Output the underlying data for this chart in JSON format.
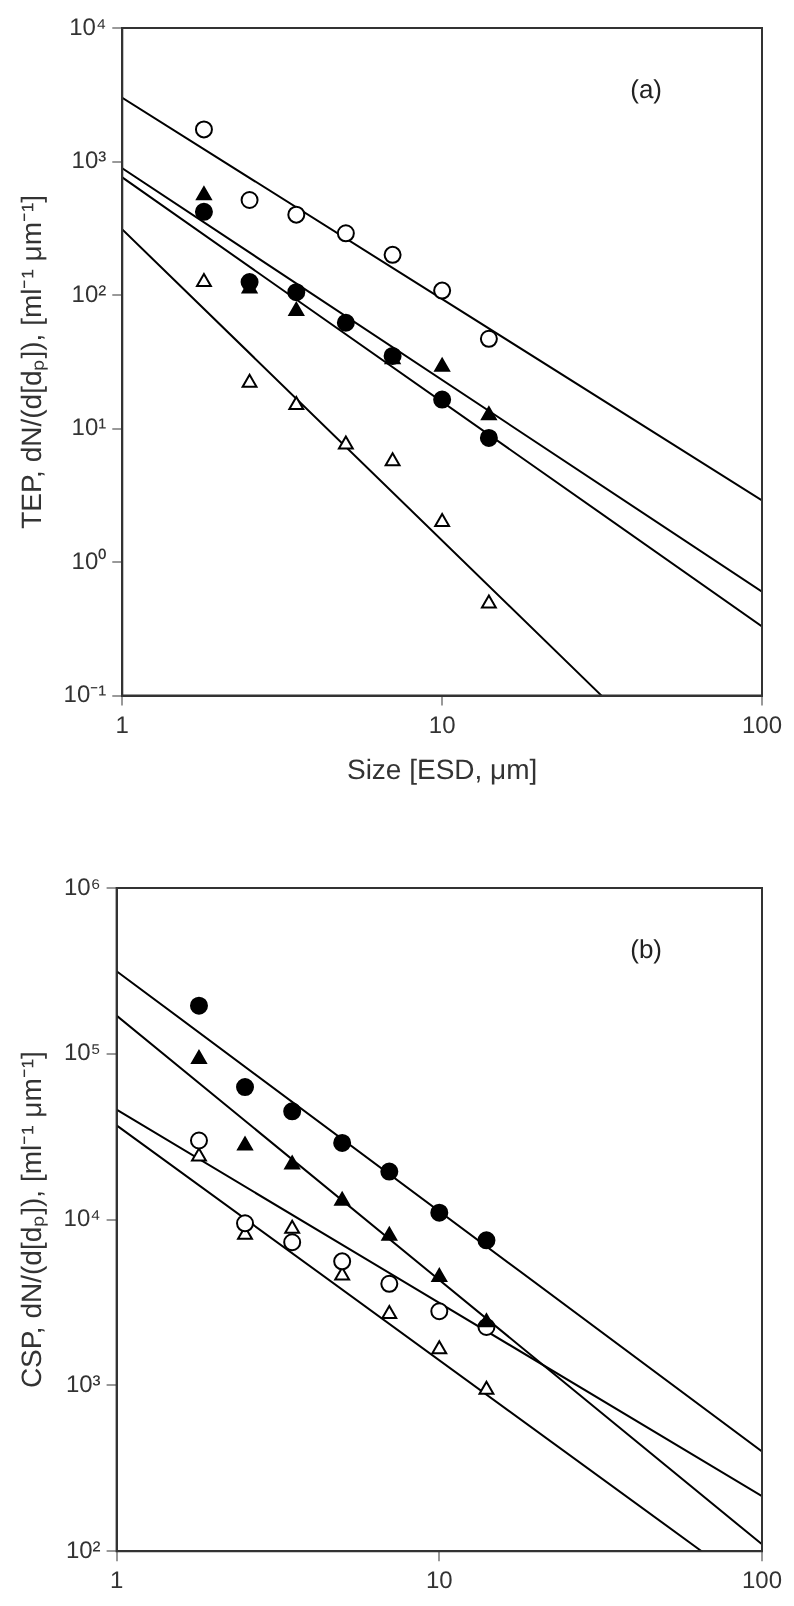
{
  "chart_data": [
    {
      "type": "scatter",
      "xlabel": "Size [ESD, μm]",
      "ylabel": "TEP, dN/(d[dₚ]), [ml⁻¹ μm⁻¹]",
      "annotations": [
        "(a)"
      ],
      "log": "xy",
      "grid": false,
      "legend": false,
      "x": [
        1.8,
        2.5,
        3.5,
        5,
        7,
        10,
        14
      ],
      "xlim": [
        1,
        100
      ],
      "xticks": [
        1,
        10,
        100
      ],
      "ylim": [
        0.1,
        10000
      ],
      "yticks": [
        {
          "value": 0.1,
          "label": "10⁻¹"
        },
        {
          "value": 1,
          "label": "10⁰"
        },
        {
          "value": 10,
          "label": "10¹"
        },
        {
          "value": 100,
          "label": "10²"
        },
        {
          "value": 1000,
          "label": "10³"
        },
        {
          "value": 10000,
          "label": "10⁴"
        }
      ],
      "series": [
        {
          "type": "scatter",
          "marker": "circle",
          "color": "#ffffff",
          "values": [
            1740,
            515,
            400,
            290,
            200,
            108,
            47
          ]
        },
        {
          "type": "scatter",
          "marker": "triangle",
          "color": "#000000",
          "values": [
            560,
            112,
            76,
            null,
            33,
            29,
            12.6
          ]
        },
        {
          "type": "scatter",
          "marker": "circle",
          "color": "#000000",
          "values": [
            420,
            125,
            105,
            62,
            35,
            16.5,
            8.5
          ]
        },
        {
          "type": "scatter",
          "marker": "triangle",
          "color": "#ffffff",
          "values": [
            125,
            22,
            15,
            7.6,
            5.7,
            2.0,
            0.49
          ]
        },
        {
          "type": "line",
          "marker": "none",
          "color": "#000000",
          "x": [
            1,
            100
          ],
          "values": [
            3000,
            2.9
          ]
        },
        {
          "type": "line",
          "marker": "none",
          "color": "#000000",
          "x": [
            1,
            100
          ],
          "values": [
            890,
            0.6
          ]
        },
        {
          "type": "line",
          "marker": "none",
          "color": "#000000",
          "x": [
            1,
            100
          ],
          "values": [
            760,
            0.33
          ]
        },
        {
          "type": "line",
          "marker": "none",
          "color": "#000000",
          "x": [
            1,
            31.5
          ],
          "values": [
            310,
            0.1
          ]
        }
      ]
    },
    {
      "type": "scatter",
      "ylabel": "CSP, dN/(d[dₚ]), [ml⁻¹ μm⁻¹]",
      "annotations": [
        "(b)"
      ],
      "log": "xy",
      "grid": false,
      "legend": false,
      "x": [
        1.8,
        2.5,
        3.5,
        5,
        7,
        10,
        14
      ],
      "xlim": [
        1,
        100
      ],
      "xticks": [
        1,
        10,
        100
      ],
      "ylim": [
        100,
        1000000
      ],
      "yticks": [
        {
          "value": 100,
          "label": "10²"
        },
        {
          "value": 1000,
          "label": "10³"
        },
        {
          "value": 10000,
          "label": "10⁴"
        },
        {
          "value": 100000,
          "label": "10⁵"
        },
        {
          "value": 1000000,
          "label": "10⁶"
        }
      ],
      "series": [
        {
          "type": "scatter",
          "marker": "circle",
          "color": "#000000",
          "values": [
            195000,
            63000,
            45000,
            29000,
            19500,
            11000,
            7500
          ]
        },
        {
          "type": "scatter",
          "marker": "triangle",
          "color": "#000000",
          "values": [
            93000,
            28000,
            21500,
            13000,
            8000,
            4500,
            2400
          ]
        },
        {
          "type": "scatter",
          "marker": "circle",
          "color": "#ffffff",
          "values": [
            30000,
            9500,
            7300,
            5600,
            4100,
            2800,
            2250
          ]
        },
        {
          "type": "scatter",
          "marker": "triangle",
          "color": "#ffffff",
          "values": [
            24000,
            8100,
            8800,
            4600,
            2700,
            1650,
            940
          ]
        },
        {
          "type": "line",
          "marker": "none",
          "color": "#000000",
          "x": [
            1,
            100
          ],
          "values": [
            315000,
            400
          ]
        },
        {
          "type": "line",
          "marker": "none",
          "color": "#000000",
          "x": [
            1,
            100
          ],
          "values": [
            170000,
            110
          ]
        },
        {
          "type": "line",
          "marker": "none",
          "color": "#000000",
          "x": [
            1,
            100
          ],
          "values": [
            46000,
            215
          ]
        },
        {
          "type": "line",
          "marker": "none",
          "color": "#000000",
          "x": [
            1,
            65
          ],
          "values": [
            37000,
            100
          ]
        }
      ]
    }
  ]
}
